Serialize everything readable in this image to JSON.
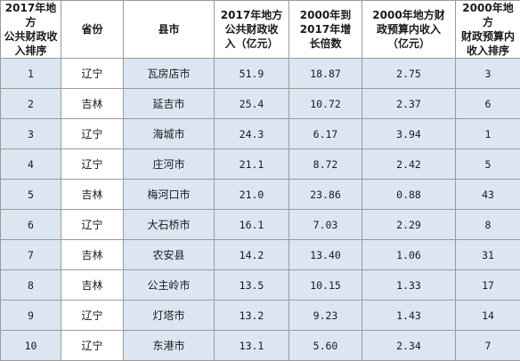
{
  "table": {
    "headers": [
      "2017年地方\n公共财政收\n入排序",
      "省份",
      "县市",
      "2017年地方\n公共财政收\n入（亿元）",
      "2000年到\n2017年增\n长倍数",
      "2000年地方财\n政预算内收入\n（亿元）",
      "2000年地方\n财政预算内\n收入排序"
    ],
    "rows": [
      [
        "1",
        "辽宁",
        "瓦房店市",
        "51.9",
        "18.87",
        "2.75",
        "3"
      ],
      [
        "2",
        "吉林",
        "延吉市",
        "25.4",
        "10.72",
        "2.37",
        "6"
      ],
      [
        "3",
        "辽宁",
        "海城市",
        "24.3",
        "6.17",
        "3.94",
        "1"
      ],
      [
        "4",
        "辽宁",
        "庄河市",
        "21.1",
        "8.72",
        "2.42",
        "5"
      ],
      [
        "5",
        "吉林",
        "梅河口市",
        "21.0",
        "23.86",
        "0.88",
        "43"
      ],
      [
        "6",
        "辽宁",
        "大石桥市",
        "16.1",
        "7.03",
        "2.29",
        "8"
      ],
      [
        "7",
        "吉林",
        "农安县",
        "14.2",
        "13.40",
        "1.06",
        "31"
      ],
      [
        "8",
        "吉林",
        "公主岭市",
        "13.5",
        "10.15",
        "1.33",
        "17"
      ],
      [
        "9",
        "辽宁",
        "灯塔市",
        "13.2",
        "9.23",
        "1.43",
        "14"
      ],
      [
        "10",
        "辽宁",
        "东港市",
        "13.1",
        "5.60",
        "2.34",
        "7"
      ]
    ],
    "colors": {
      "highlight": "#dce6f2",
      "plain": "#ffffff",
      "border": "#9a9a9a"
    }
  }
}
